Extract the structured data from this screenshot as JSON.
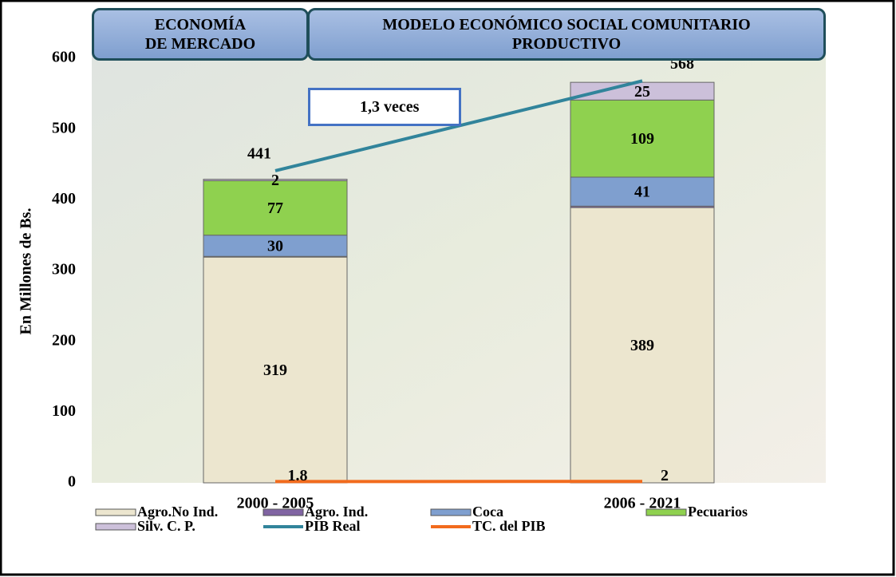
{
  "chart_data": {
    "type": "bar",
    "stacked": true,
    "headers": [
      "ECONOMÍA DE MERCADO",
      "MODELO ECONÓMICO SOCIAL COMUNITARIO PRODUCTIVO"
    ],
    "annotation": "1,3 veces",
    "y_label": "En Millones de Bs.",
    "categories": [
      "2000 - 2005",
      "2006 - 2021"
    ],
    "ylim": [
      0,
      600
    ],
    "yticks": [
      0,
      100,
      200,
      300,
      400,
      500,
      600
    ],
    "series": [
      {
        "name": "Agro.No Ind.",
        "type": "bar",
        "color": "#ece6cf",
        "values": [
          319,
          389
        ]
      },
      {
        "name": "Agro. Ind.",
        "type": "bar",
        "color": "#8064a2",
        "values": [
          1,
          2
        ],
        "data_labels": false
      },
      {
        "name": "Coca",
        "type": "bar",
        "color": "#7f9fcf",
        "values": [
          30,
          41
        ]
      },
      {
        "name": "Pecuarios",
        "type": "bar",
        "color": "#8fd14f",
        "values": [
          77,
          109
        ]
      },
      {
        "name": "Silv. C. P.",
        "type": "bar",
        "color": "#ccc0da",
        "values": [
          2,
          25
        ]
      },
      {
        "name": "PIB Real",
        "type": "line",
        "color": "#31849b",
        "values": [
          441,
          568
        ]
      },
      {
        "name": "TC. del PIB",
        "type": "line",
        "color": "#f26b1d",
        "values": [
          1.8,
          2
        ]
      }
    ]
  }
}
